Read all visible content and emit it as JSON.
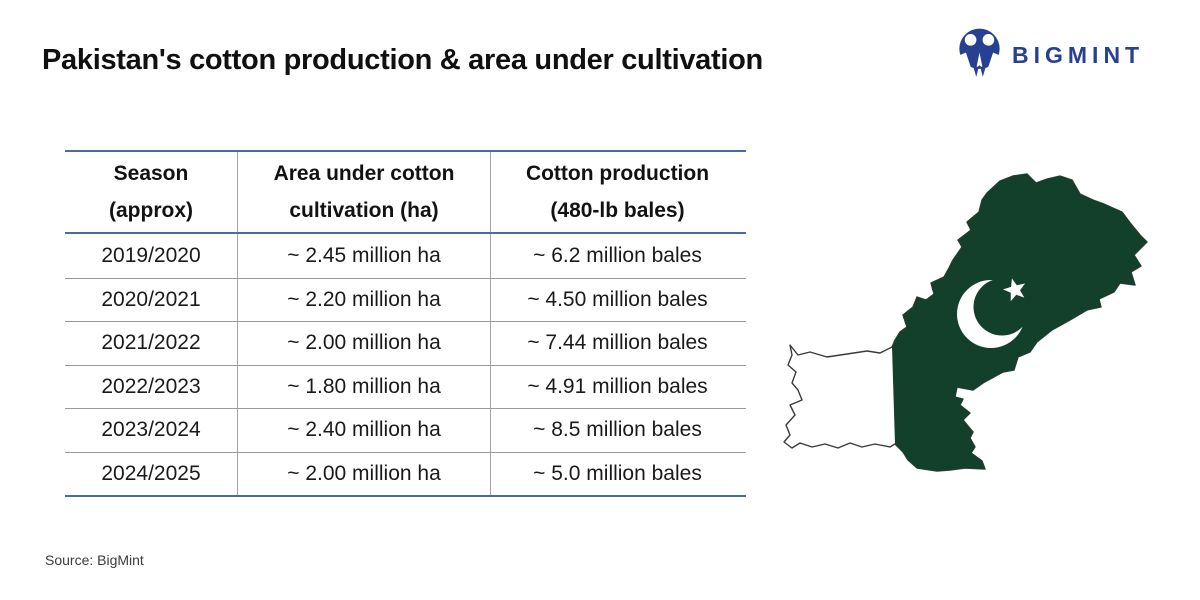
{
  "header": {
    "title": "Pakistan's cotton production & area under cultivation",
    "brand_name": "BIGMINT"
  },
  "table": {
    "headers": [
      {
        "line1": "Season",
        "line2": "(approx)"
      },
      {
        "line1": "Area under cotton",
        "line2": "cultivation (ha)"
      },
      {
        "line1": "Cotton production",
        "line2": "(480-lb bales)"
      }
    ],
    "rows": [
      [
        "2019/2020",
        "~ 2.45 million ha",
        "~ 6.2 million bales"
      ],
      [
        "2020/2021",
        "~ 2.20 million ha",
        "~ 4.50 million bales"
      ],
      [
        "2021/2022",
        "~ 2.00 million ha",
        "~ 7.44 million bales"
      ],
      [
        "2022/2023",
        "~ 1.80 million ha",
        "~ 4.91 million bales"
      ],
      [
        "2023/2024",
        "~ 2.40 million ha",
        "~ 8.5 million bales"
      ],
      [
        "2024/2025",
        "~ 2.00 million ha",
        "~ 5.0 million bales"
      ]
    ]
  },
  "source": "Source: BigMint",
  "colors": {
    "table_accent_blue": "#4a69a8",
    "brand_blue": "#26418f",
    "flag_green": "#12402a",
    "map_outline": "#3a3a3a"
  },
  "chart_data": {
    "type": "table",
    "title": "Pakistan's cotton production & area under cultivation",
    "columns": [
      "Season (approx)",
      "Area under cotton cultivation (ha)",
      "Cotton production (480-lb bales)"
    ],
    "seasons": [
      "2019/2020",
      "2020/2021",
      "2021/2022",
      "2022/2023",
      "2023/2024",
      "2024/2025"
    ],
    "area_million_ha": [
      2.45,
      2.2,
      2.0,
      1.8,
      2.4,
      2.0
    ],
    "production_million_bales": [
      6.2,
      4.5,
      7.44,
      4.91,
      8.5,
      5.0
    ],
    "source": "BigMint"
  }
}
